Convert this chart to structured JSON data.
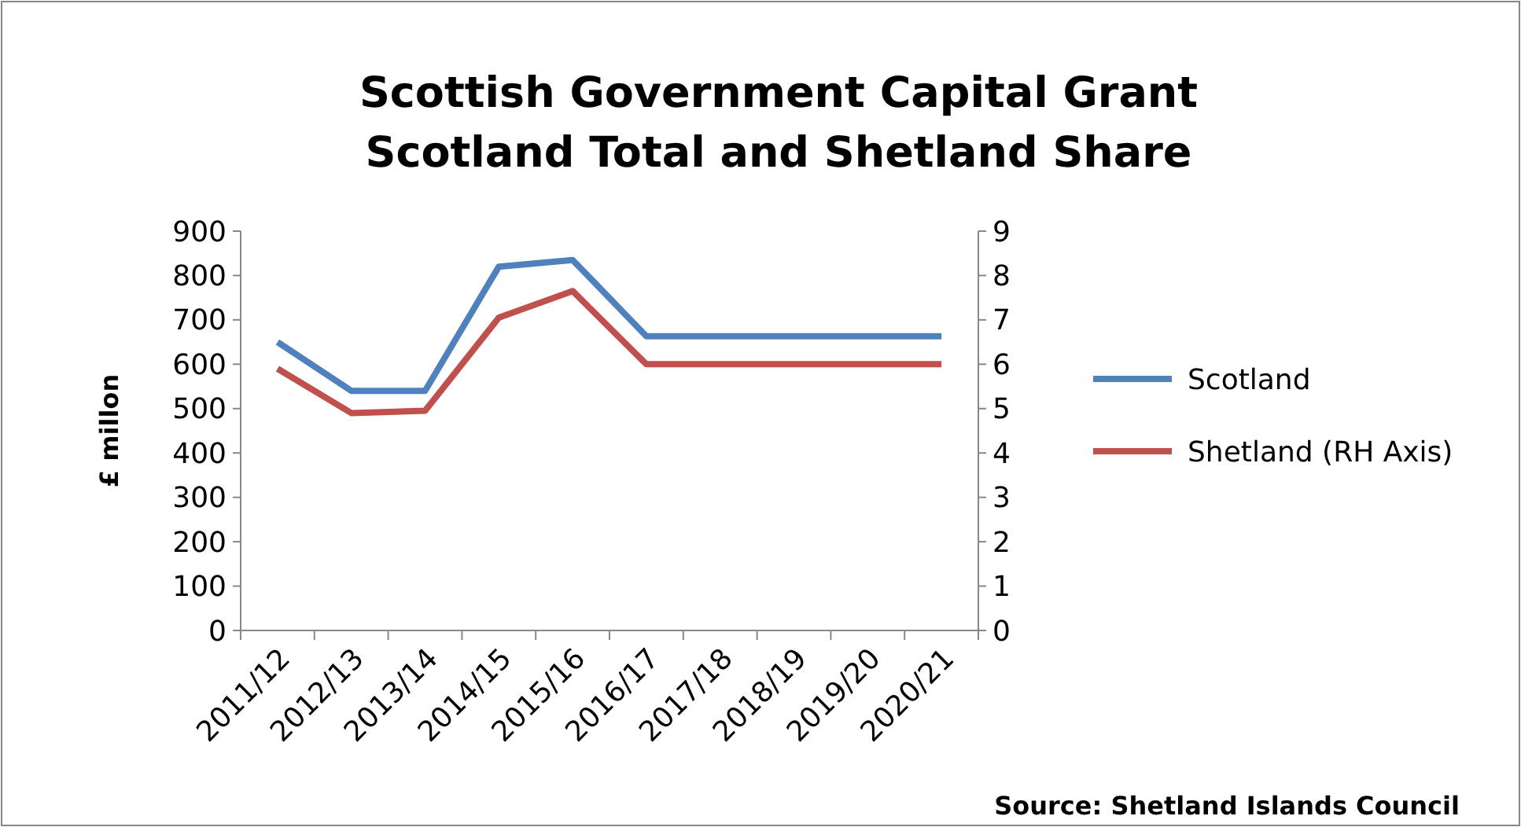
{
  "chart_data": {
    "type": "line",
    "title": "Scottish Government Capital Grant",
    "subtitle": "Scotland Total and Shetland Share",
    "ylabel": "£ millon",
    "categories": [
      "2011/12",
      "2012/13",
      "2013/14",
      "2014/15",
      "2015/16",
      "2016/17",
      "2017/18",
      "2018/19",
      "2019/20",
      "2020/21"
    ],
    "series": [
      {
        "name": "Scotland",
        "color": "#4f81bd",
        "values": [
          650,
          540,
          540,
          820,
          835,
          663,
          663,
          663,
          663,
          663
        ]
      },
      {
        "name": "Shetland (RH Axis)",
        "color": "#c0504d",
        "axis": "y2",
        "values": [
          5.9,
          4.9,
          4.95,
          7.05,
          7.65,
          6,
          6,
          6,
          6,
          6
        ]
      }
    ],
    "ylim": [
      0,
      900
    ],
    "yticks": [
      0,
      100,
      200,
      300,
      400,
      500,
      600,
      700,
      800,
      900
    ],
    "y2lim": [
      0,
      9
    ],
    "y2ticks": [
      0,
      1,
      2,
      3,
      4,
      5,
      6,
      7,
      8,
      9
    ],
    "grid": false,
    "legend": "right",
    "marker": "none",
    "line_style": "solid",
    "annotations": [
      "Source: Shetland Islands Council"
    ]
  }
}
